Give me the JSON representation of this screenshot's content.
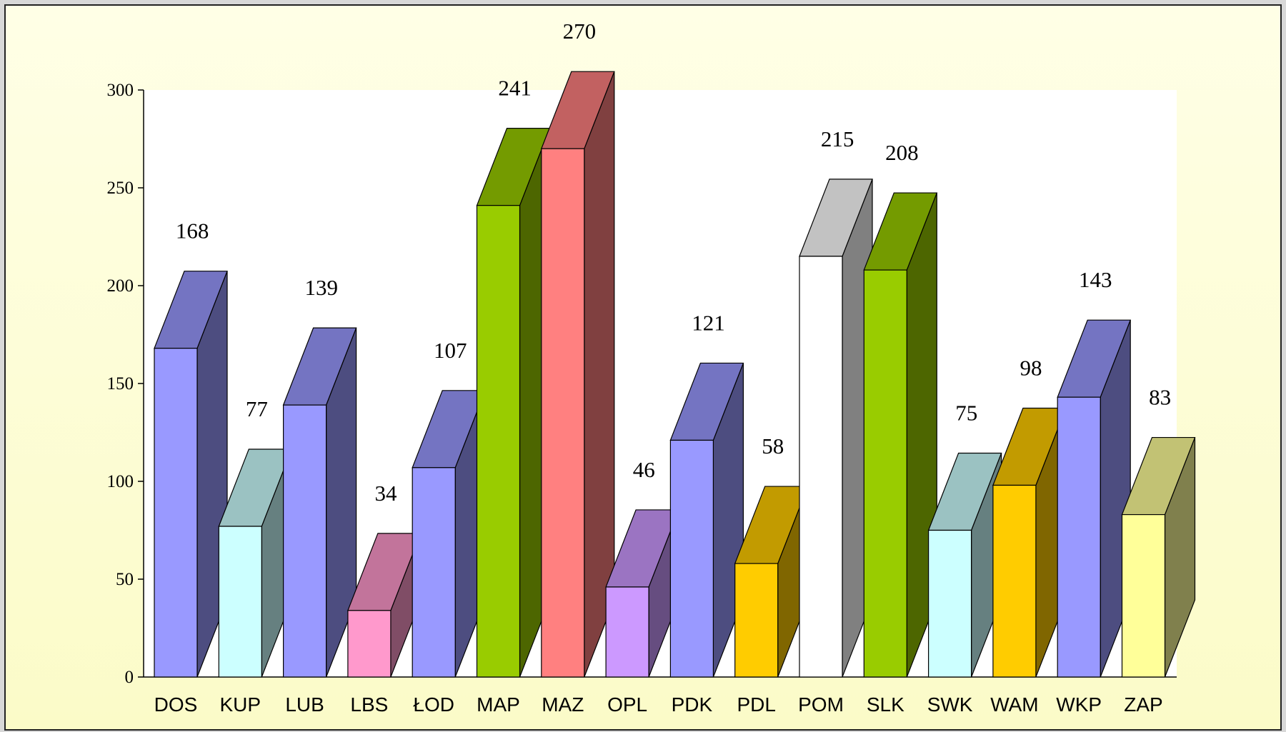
{
  "chart_data": {
    "type": "bar3d",
    "categories": [
      "DOS",
      "KUP",
      "LUB",
      "LBS",
      "ŁOD",
      "MAP",
      "MAZ",
      "OPL",
      "PDK",
      "PDL",
      "POM",
      "SLK",
      "SWK",
      "WAM",
      "WKP",
      "ZAP"
    ],
    "values": [
      168,
      77,
      139,
      34,
      107,
      241,
      270,
      46,
      121,
      58,
      215,
      208,
      75,
      98,
      143,
      83
    ],
    "colors": [
      "#9999ff",
      "#ccffff",
      "#9999ff",
      "#ff99cc",
      "#9999ff",
      "#99cc00",
      "#ff8080",
      "#cc99ff",
      "#9999ff",
      "#ffcc00",
      "#ffffff",
      "#99cc00",
      "#ccffff",
      "#ffcc00",
      "#9999ff",
      "#ffff99"
    ],
    "ylim": [
      0,
      300
    ],
    "yticks": [
      0,
      50,
      100,
      150,
      200,
      250,
      300
    ]
  }
}
